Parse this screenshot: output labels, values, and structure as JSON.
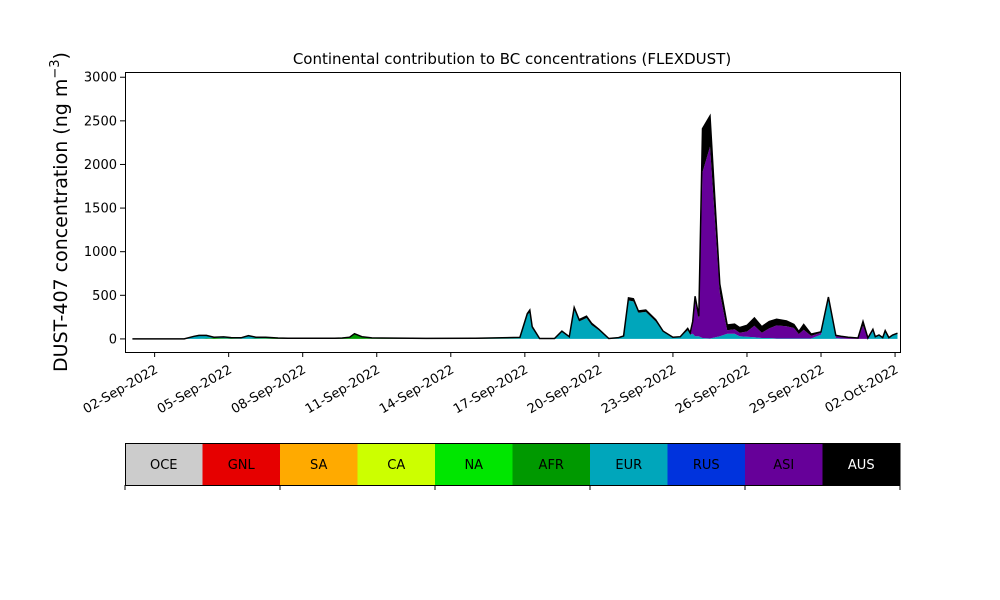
{
  "chart_data": {
    "type": "area",
    "title": "Continental contribution to BC concentrations (FLEXDUST)",
    "ylabel_main": "DUST-407 concentration (ng m",
    "ylabel_sup": "−3",
    "ylabel_close": ")",
    "xlabel": "",
    "ylim": [
      -150,
      3060
    ],
    "y_ticks": [
      0,
      500,
      1000,
      1500,
      2000,
      2500,
      3000
    ],
    "x_range_days": [
      -1.2,
      30.2
    ],
    "x_tick_days": [
      0,
      3,
      6,
      9,
      12,
      15,
      18,
      21,
      24,
      27,
      30
    ],
    "x_tick_labels": [
      "02-Sep-2022",
      "05-Sep-2022",
      "08-Sep-2022",
      "11-Sep-2022",
      "14-Sep-2022",
      "17-Sep-2022",
      "20-Sep-2022",
      "23-Sep-2022",
      "26-Sep-2022",
      "29-Sep-2022",
      "02-Oct-2022"
    ],
    "x": [
      -0.9,
      0.4,
      1.2,
      1.6,
      1.8,
      2.1,
      2.4,
      2.8,
      3.1,
      3.5,
      3.8,
      4.1,
      4.5,
      5.0,
      5.4,
      6.0,
      6.6,
      7.0,
      7.3,
      7.6,
      7.9,
      8.1,
      8.4,
      8.8,
      9.2,
      9.8,
      11.0,
      13.0,
      14.8,
      15.1,
      15.2,
      15.3,
      15.6,
      16.2,
      16.5,
      16.8,
      17.0,
      17.2,
      17.5,
      17.7,
      18.0,
      18.4,
      18.8,
      19.0,
      19.2,
      19.4,
      19.6,
      19.9,
      20.3,
      20.6,
      21.0,
      21.3,
      21.6,
      21.7,
      21.8,
      21.9,
      22.05,
      22.2,
      22.5,
      22.9,
      23.2,
      23.5,
      23.7,
      24.0,
      24.3,
      24.6,
      24.9,
      25.2,
      25.6,
      25.9,
      26.1,
      26.3,
      26.6,
      27.0,
      27.3,
      27.6,
      27.8,
      28.1,
      28.3,
      28.5,
      28.7,
      28.9,
      29.1,
      29.2,
      29.35,
      29.5,
      29.6,
      29.75,
      29.9,
      30.1
    ],
    "series": [
      {
        "name": "OCE",
        "color": "#cccccc",
        "values": [
          0,
          0,
          0,
          0,
          0,
          0,
          0,
          0,
          0,
          0,
          0,
          0,
          0,
          0,
          0,
          0,
          0,
          0,
          0,
          0,
          0,
          0,
          0,
          0,
          0,
          0,
          0,
          0,
          0,
          0,
          0,
          0,
          0,
          0,
          0,
          0,
          0,
          0,
          0,
          0,
          0,
          0,
          0,
          0,
          0,
          0,
          0,
          0,
          0,
          0,
          0,
          0,
          0,
          0,
          0,
          0,
          0,
          0,
          0,
          0,
          0,
          0,
          0,
          0,
          0,
          0,
          0,
          0,
          0,
          0,
          0,
          0,
          0,
          0,
          0,
          0,
          0,
          0,
          0,
          0,
          0,
          0,
          0,
          0,
          0,
          0,
          0,
          0,
          0,
          0
        ]
      },
      {
        "name": "GNL",
        "color": "#e60000",
        "values": [
          0,
          0,
          0,
          0,
          0,
          0,
          0,
          0,
          0,
          0,
          0,
          0,
          0,
          0,
          0,
          0,
          0,
          0,
          0,
          0,
          0,
          0,
          0,
          0,
          0,
          0,
          0,
          0,
          0,
          0,
          0,
          0,
          0,
          0,
          0,
          0,
          0,
          0,
          0,
          0,
          0,
          0,
          0,
          0,
          0,
          0,
          0,
          0,
          0,
          0,
          0,
          0,
          0,
          0,
          0,
          0,
          0,
          0,
          0,
          0,
          0,
          0,
          0,
          0,
          0,
          0,
          0,
          0,
          0,
          0,
          0,
          0,
          0,
          0,
          0,
          0,
          0,
          0,
          0,
          0,
          0,
          0,
          0,
          0,
          0,
          0,
          0,
          0,
          0,
          0
        ]
      },
      {
        "name": "SA",
        "color": "#ffaa00",
        "values": [
          0,
          0,
          0,
          0,
          0,
          0,
          0,
          0,
          0,
          0,
          0,
          0,
          0,
          0,
          0,
          0,
          0,
          0,
          0,
          0,
          0,
          0,
          0,
          0,
          0,
          0,
          0,
          0,
          0,
          0,
          0,
          0,
          0,
          0,
          0,
          0,
          0,
          0,
          0,
          0,
          0,
          0,
          0,
          0,
          0,
          0,
          0,
          0,
          0,
          0,
          0,
          0,
          0,
          0,
          0,
          0,
          0,
          0,
          0,
          0,
          0,
          0,
          0,
          0,
          0,
          0,
          0,
          0,
          0,
          0,
          0,
          0,
          0,
          0,
          0,
          0,
          0,
          0,
          0,
          0,
          0,
          0,
          0,
          0,
          0,
          0,
          0,
          0,
          0,
          0
        ]
      },
      {
        "name": "CA",
        "color": "#ccff00",
        "values": [
          0,
          0,
          0,
          0,
          0,
          0,
          0,
          0,
          0,
          0,
          0,
          0,
          0,
          0,
          0,
          0,
          0,
          0,
          0,
          0,
          0,
          0,
          0,
          0,
          0,
          0,
          0,
          0,
          0,
          0,
          0,
          0,
          0,
          0,
          0,
          0,
          0,
          0,
          0,
          0,
          0,
          0,
          0,
          0,
          0,
          0,
          0,
          0,
          0,
          0,
          0,
          0,
          0,
          0,
          0,
          0,
          0,
          0,
          0,
          0,
          0,
          0,
          0,
          0,
          0,
          0,
          0,
          0,
          0,
          0,
          0,
          0,
          0,
          0,
          0,
          0,
          0,
          0,
          0,
          0,
          0,
          0,
          0,
          0,
          0,
          0,
          0,
          0,
          0,
          0
        ]
      },
      {
        "name": "NA",
        "color": "#00e600",
        "values": [
          0,
          0,
          0,
          0,
          0,
          0,
          0,
          0,
          0,
          0,
          0,
          0,
          0,
          0,
          0,
          0,
          0,
          0,
          0,
          0,
          0,
          0,
          0,
          2,
          3,
          2,
          1,
          2,
          2,
          0,
          0,
          0,
          0,
          0,
          0,
          0,
          0,
          0,
          0,
          0,
          0,
          0,
          0,
          0,
          0,
          0,
          0,
          0,
          0,
          0,
          0,
          0,
          0,
          0,
          0,
          0,
          0,
          0,
          0,
          0,
          0,
          0,
          0,
          0,
          0,
          0,
          0,
          0,
          0,
          0,
          0,
          0,
          0,
          0,
          0,
          0,
          0,
          0,
          0,
          0,
          0,
          0,
          0,
          0,
          0,
          0,
          0,
          0,
          0,
          0
        ]
      },
      {
        "name": "AFR",
        "color": "#009900",
        "values": [
          0,
          0,
          0,
          0,
          0,
          5,
          10,
          8,
          5,
          3,
          3,
          5,
          8,
          5,
          3,
          2,
          3,
          2,
          3,
          6,
          15,
          55,
          20,
          5,
          3,
          2,
          0,
          0,
          0,
          0,
          0,
          0,
          0,
          0,
          0,
          0,
          0,
          0,
          0,
          0,
          0,
          0,
          0,
          0,
          0,
          0,
          0,
          0,
          0,
          0,
          0,
          0,
          0,
          0,
          0,
          0,
          0,
          0,
          0,
          0,
          0,
          0,
          0,
          0,
          0,
          0,
          0,
          0,
          0,
          0,
          0,
          0,
          0,
          0,
          0,
          0,
          0,
          0,
          0,
          0,
          0,
          0,
          0,
          0,
          0,
          0,
          0,
          0,
          0,
          0
        ]
      },
      {
        "name": "EUR",
        "color": "#00a6bb",
        "values": [
          0,
          0,
          0,
          30,
          35,
          30,
          5,
          10,
          5,
          5,
          30,
          10,
          5,
          0,
          0,
          0,
          0,
          0,
          0,
          0,
          0,
          0,
          0,
          0,
          0,
          0,
          0,
          0,
          10,
          280,
          300,
          120,
          0,
          0,
          80,
          20,
          340,
          200,
          240,
          160,
          100,
          0,
          10,
          30,
          440,
          430,
          300,
          310,
          200,
          80,
          15,
          20,
          100,
          50,
          60,
          30,
          30,
          10,
          5,
          30,
          60,
          60,
          30,
          25,
          20,
          10,
          10,
          5,
          5,
          5,
          5,
          5,
          5,
          50,
          450,
          10,
          5,
          0,
          0,
          0,
          0,
          0,
          90,
          20,
          40,
          10,
          90,
          10,
          40,
          60
        ]
      },
      {
        "name": "RUS",
        "color": "#0033dd",
        "values": [
          0,
          0,
          0,
          0,
          0,
          0,
          0,
          0,
          0,
          0,
          0,
          0,
          0,
          0,
          0,
          0,
          0,
          0,
          0,
          0,
          0,
          0,
          0,
          0,
          0,
          0,
          0,
          0,
          0,
          0,
          0,
          0,
          0,
          0,
          0,
          0,
          0,
          0,
          0,
          0,
          0,
          0,
          0,
          0,
          0,
          0,
          0,
          0,
          0,
          0,
          0,
          0,
          0,
          0,
          0,
          0,
          0,
          0,
          0,
          0,
          0,
          0,
          0,
          0,
          0,
          0,
          0,
          0,
          0,
          0,
          0,
          0,
          0,
          0,
          0,
          0,
          0,
          0,
          0,
          0,
          0,
          0,
          0,
          0,
          0,
          0,
          0,
          0,
          0,
          0
        ]
      },
      {
        "name": "ASI",
        "color": "#660099",
        "values": [
          0,
          0,
          0,
          0,
          0,
          0,
          0,
          0,
          0,
          0,
          0,
          0,
          0,
          0,
          0,
          0,
          0,
          0,
          0,
          0,
          0,
          0,
          0,
          0,
          0,
          0,
          0,
          0,
          0,
          0,
          0,
          0,
          0,
          0,
          0,
          0,
          0,
          0,
          0,
          0,
          0,
          0,
          0,
          0,
          0,
          0,
          0,
          0,
          0,
          0,
          0,
          0,
          0,
          0,
          100,
          400,
          200,
          1900,
          2200,
          500,
          40,
          50,
          40,
          60,
          130,
          60,
          110,
          150,
          140,
          120,
          50,
          100,
          30,
          20,
          20,
          20,
          20,
          15,
          10,
          5,
          150,
          5,
          15,
          0,
          0,
          0,
          0,
          0,
          0,
          0
        ]
      },
      {
        "name": "AUS",
        "color": "#000000",
        "values": [
          0,
          0,
          0,
          0,
          5,
          5,
          5,
          5,
          5,
          5,
          5,
          5,
          5,
          5,
          5,
          5,
          5,
          5,
          5,
          5,
          5,
          5,
          5,
          5,
          5,
          5,
          5,
          5,
          5,
          10,
          30,
          20,
          5,
          5,
          10,
          5,
          20,
          20,
          20,
          20,
          10,
          5,
          5,
          5,
          30,
          30,
          20,
          20,
          20,
          10,
          5,
          5,
          20,
          20,
          40,
          60,
          30,
          500,
          350,
          100,
          60,
          60,
          60,
          70,
          90,
          70,
          80,
          70,
          60,
          40,
          30,
          60,
          20,
          10,
          10,
          10,
          5,
          5,
          5,
          5,
          50,
          5,
          5,
          5,
          5,
          5,
          5,
          5,
          5,
          5
        ]
      }
    ],
    "legend": {
      "placement": "below",
      "entries": [
        "OCE",
        "GNL",
        "SA",
        "CA",
        "NA",
        "AFR",
        "EUR",
        "RUS",
        "ASI",
        "AUS"
      ],
      "text_colors": [
        "#000000",
        "#000000",
        "#000000",
        "#000000",
        "#000000",
        "#000000",
        "#000000",
        "#000000",
        "#000000",
        "#ffffff"
      ]
    },
    "grid": false
  }
}
